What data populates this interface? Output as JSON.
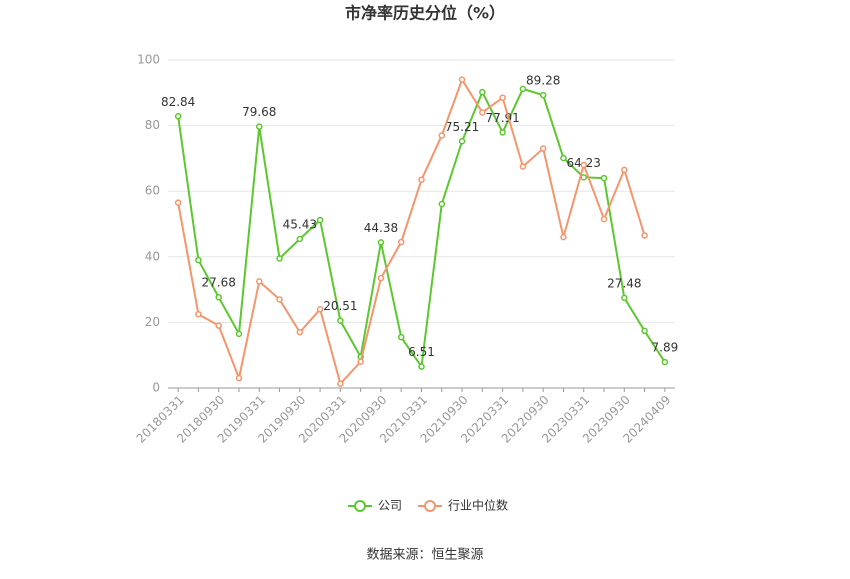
{
  "chart_data": {
    "type": "line",
    "title": "市净率历史分位（%）",
    "categories": [
      "20180331",
      null,
      "20180930",
      null,
      "20190331",
      null,
      "20190930",
      null,
      "20200331",
      null,
      "20200930",
      null,
      "20210331",
      null,
      "20210930",
      null,
      "20220331",
      null,
      "20220930",
      null,
      "20230331",
      null,
      "20230930",
      null,
      "20240409"
    ],
    "series": [
      {
        "name": "公司",
        "color": "#5cc72f",
        "values": [
          82.84,
          39.0,
          27.68,
          16.5,
          79.68,
          39.5,
          45.43,
          51.2,
          20.51,
          9.5,
          44.38,
          15.5,
          6.51,
          56.1,
          75.21,
          90.2,
          77.91,
          91.2,
          89.28,
          70.1,
          64.23,
          64.0,
          27.48,
          17.4,
          7.89
        ],
        "value_labels": [
          "82.84",
          null,
          "27.68",
          null,
          "79.68",
          null,
          "45.43",
          null,
          "20.51",
          null,
          "44.38",
          null,
          "6.51",
          null,
          "75.21",
          null,
          "77.91",
          null,
          "89.28",
          null,
          "64.23",
          null,
          "27.48",
          null,
          "7.89"
        ]
      },
      {
        "name": "行业中位数",
        "color": "#f4956b",
        "values": [
          56.5,
          22.5,
          19.0,
          3.0,
          32.5,
          27.0,
          17.0,
          24.0,
          1.3,
          8.0,
          33.5,
          44.5,
          63.5,
          77.0,
          94.0,
          84.0,
          88.5,
          67.5,
          73.0,
          46.0,
          68.0,
          51.5,
          66.5,
          46.5,
          null
        ]
      }
    ],
    "ylim": [
      0,
      100
    ],
    "yticks": [
      0,
      20,
      40,
      60,
      80,
      100
    ],
    "grid": true,
    "legend": "bottom",
    "source": "数据来源：恒生聚源"
  }
}
